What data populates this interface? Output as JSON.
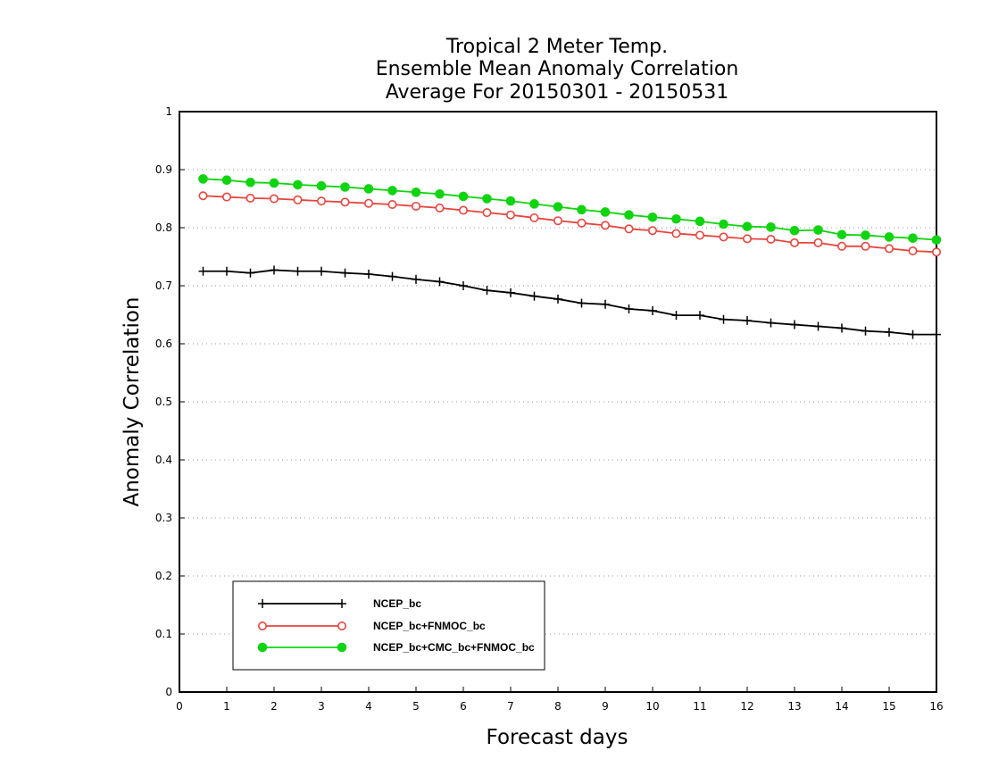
{
  "chart_data": {
    "type": "line",
    "title_lines": [
      "Tropical 2 Meter Temp.",
      "Ensemble Mean Anomaly Correlation",
      "Average For 20150301 - 20150531"
    ],
    "xlabel": "Forecast days",
    "ylabel": "Anomaly Correlation",
    "xlim": [
      0,
      16
    ],
    "ylim": [
      0,
      1
    ],
    "x_ticks": [
      "0",
      "1",
      "2",
      "3",
      "4",
      "5",
      "6",
      "7",
      "8",
      "9",
      "10",
      "11",
      "12",
      "13",
      "14",
      "15",
      "16"
    ],
    "y_ticks": [
      "0",
      "0.1",
      "0.2",
      "0.3",
      "0.4",
      "0.5",
      "0.6",
      "0.7",
      "0.8",
      "0.9",
      "1"
    ],
    "grid": "horizontal dotted",
    "legend_position": "bottom-left",
    "x": [
      0.5,
      1,
      1.5,
      2,
      2.5,
      3,
      3.5,
      4,
      4.5,
      5,
      5.5,
      6,
      6.5,
      7,
      7.5,
      8,
      8.5,
      9,
      9.5,
      10,
      10.5,
      11,
      11.5,
      12,
      12.5,
      13,
      13.5,
      14,
      14.5,
      15,
      15.5,
      16
    ],
    "series": [
      {
        "name": "NCEP_bc",
        "color": "#000000",
        "marker": "plus",
        "values": [
          0.725,
          0.725,
          0.722,
          0.727,
          0.725,
          0.725,
          0.722,
          0.72,
          0.716,
          0.711,
          0.707,
          0.7,
          0.692,
          0.688,
          0.682,
          0.677,
          0.67,
          0.668,
          0.66,
          0.657,
          0.649,
          0.649,
          0.642,
          0.64,
          0.636,
          0.633,
          0.63,
          0.627,
          0.622,
          0.62,
          0.616,
          0.616
        ]
      },
      {
        "name": "NCEP_bc+FNMOC_bc",
        "color": "#e8453c",
        "marker": "open-circle",
        "values": [
          0.855,
          0.853,
          0.851,
          0.85,
          0.848,
          0.846,
          0.844,
          0.842,
          0.84,
          0.837,
          0.834,
          0.83,
          0.826,
          0.822,
          0.817,
          0.812,
          0.808,
          0.804,
          0.798,
          0.795,
          0.79,
          0.787,
          0.784,
          0.781,
          0.78,
          0.774,
          0.774,
          0.768,
          0.768,
          0.764,
          0.76,
          0.758
        ]
      },
      {
        "name": "NCEP_bc+CMC_bc+FNMOC_bc",
        "color": "#11d411",
        "marker": "filled-circle",
        "values": [
          0.884,
          0.882,
          0.878,
          0.877,
          0.874,
          0.872,
          0.87,
          0.867,
          0.864,
          0.861,
          0.858,
          0.854,
          0.85,
          0.846,
          0.841,
          0.836,
          0.831,
          0.827,
          0.822,
          0.818,
          0.815,
          0.811,
          0.806,
          0.802,
          0.801,
          0.795,
          0.796,
          0.788,
          0.787,
          0.784,
          0.782,
          0.779
        ]
      }
    ]
  }
}
